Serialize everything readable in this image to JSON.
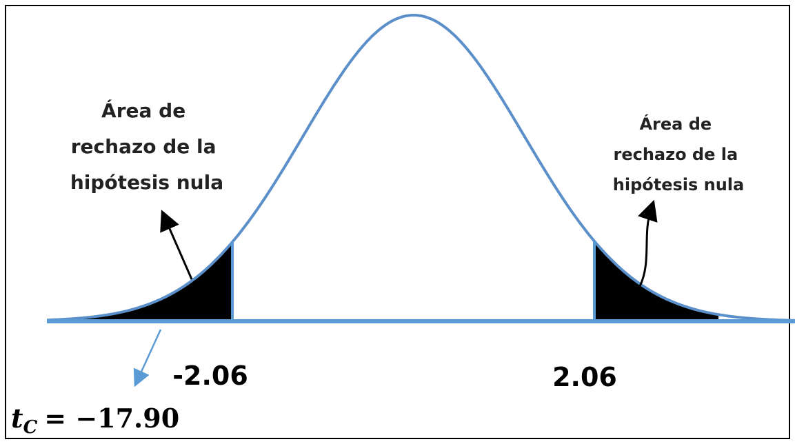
{
  "left_label": {
    "lines": [
      "Área de",
      "rechazo de la",
      "hipótesis nula"
    ]
  },
  "right_label": {
    "lines": [
      "Área de",
      "rechazo de la",
      "hipótesis nula"
    ]
  },
  "critical_left": "-2.06",
  "critical_right": "2.06",
  "statistic": {
    "symbol": "t",
    "subscript": "C",
    "rest": "= −17.90"
  }
}
